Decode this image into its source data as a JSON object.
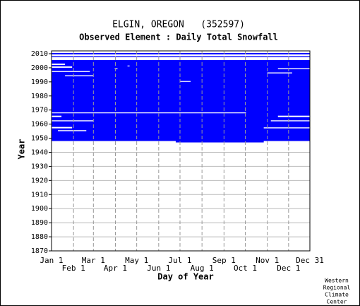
{
  "chart_data": {
    "type": "raster",
    "title": "ELGIN, OREGON   (352597)",
    "subtitle": "Observed Element : Daily Total Snowfall",
    "xlabel": "Day of Year",
    "ylabel": "Year",
    "credit": [
      "Western",
      "Regional",
      "Climate",
      "Center"
    ],
    "color": "#0000ff",
    "gap_color": "#ffffff",
    "xlim": [
      1,
      365
    ],
    "ylim": [
      1870,
      2012
    ],
    "xticks": [
      {
        "value": 1,
        "label": "Jan 1"
      },
      {
        "value": 32,
        "label": "Feb 1"
      },
      {
        "value": 60,
        "label": "Mar 1"
      },
      {
        "value": 91,
        "label": "Apr 1"
      },
      {
        "value": 121,
        "label": "May 1"
      },
      {
        "value": 152,
        "label": "Jun 1"
      },
      {
        "value": 182,
        "label": "Jul 1"
      },
      {
        "value": 213,
        "label": "Aug 1"
      },
      {
        "value": 244,
        "label": "Sep 1"
      },
      {
        "value": 274,
        "label": "Oct 1"
      },
      {
        "value": 305,
        "label": "Nov 1"
      },
      {
        "value": 335,
        "label": "Dec 1"
      },
      {
        "value": 365,
        "label": "Dec 31"
      }
    ],
    "yticks": [
      1870,
      1880,
      1890,
      1900,
      1910,
      1920,
      1930,
      1940,
      1950,
      1960,
      1970,
      1980,
      1990,
      2000,
      2010
    ],
    "grid": true,
    "blocks": [
      {
        "days": [
          1,
          365
        ],
        "years": [
          1948,
          2005.5
        ]
      },
      {
        "days": [
          176,
          300
        ],
        "years": [
          1947,
          1948
        ]
      },
      {
        "days": [
          1,
          365
        ],
        "years": [
          2009.5,
          2010.5
        ]
      },
      {
        "days": [
          1,
          365
        ],
        "years": [
          2007.5,
          2008.2
        ]
      }
    ],
    "gaps": [
      {
        "days": [
          1,
          275
        ],
        "years": [
          1967.7,
          1968.3
        ]
      },
      {
        "days": [
          1,
          30
        ],
        "years": [
          2000,
          2001
        ]
      },
      {
        "days": [
          1,
          55
        ],
        "years": [
          1997,
          1997.7
        ]
      },
      {
        "days": [
          20,
          60
        ],
        "years": [
          1994,
          1994.7
        ]
      },
      {
        "days": [
          1,
          20
        ],
        "years": [
          2002,
          2003
        ]
      },
      {
        "days": [
          1,
          60
        ],
        "years": [
          1962,
          1962.7
        ]
      },
      {
        "days": [
          1,
          30
        ],
        "years": [
          1957,
          1958
        ]
      },
      {
        "days": [
          10,
          50
        ],
        "years": [
          1955,
          1955.7
        ]
      },
      {
        "days": [
          1,
          15
        ],
        "years": [
          1965,
          1966
        ]
      },
      {
        "days": [
          300,
          365
        ],
        "years": [
          1957,
          1957.7
        ]
      },
      {
        "days": [
          310,
          365
        ],
        "years": [
          1962,
          1962.7
        ]
      },
      {
        "days": [
          320,
          365
        ],
        "years": [
          1965,
          1966
        ]
      },
      {
        "days": [
          320,
          365
        ],
        "years": [
          1999,
          1999.7
        ]
      },
      {
        "days": [
          305,
          340
        ],
        "years": [
          1996,
          1996.7
        ]
      },
      {
        "days": [
          182,
          197
        ],
        "years": [
          1990,
          1990.6
        ]
      },
      {
        "days": [
          90,
          94
        ],
        "years": [
          1999,
          1999.6
        ]
      },
      {
        "days": [
          108,
          111
        ],
        "years": [
          2001,
          2001.6
        ]
      }
    ]
  }
}
